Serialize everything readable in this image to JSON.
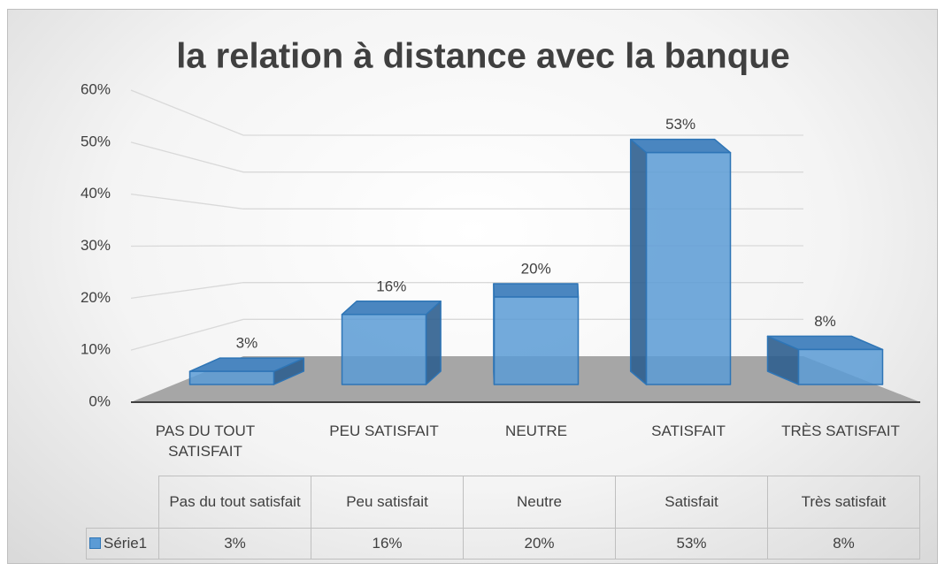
{
  "chart_data": {
    "type": "bar3d",
    "title": "la relation à distance avec la banque",
    "categories": [
      "PAS DU TOUT SATISFAIT",
      "PEU SATISFAIT",
      "NEUTRE",
      "SATISFAIT",
      "TRÈS SATISFAIT"
    ],
    "table_categories": [
      "Pas du tout satisfait",
      "Peu satisfait",
      "Neutre",
      "Satisfait",
      "Très satisfait"
    ],
    "series": [
      {
        "name": "Série1",
        "color": "#5b9bd5",
        "values": [
          3,
          16,
          20,
          53,
          8
        ],
        "value_labels": [
          "3%",
          "16%",
          "20%",
          "53%",
          "8%"
        ]
      }
    ],
    "ylim": [
      0,
      60
    ],
    "yticks": [
      {
        "value": 0,
        "label": "0%"
      },
      {
        "value": 10,
        "label": "10%"
      },
      {
        "value": 20,
        "label": "20%"
      },
      {
        "value": 30,
        "label": "30%"
      },
      {
        "value": 40,
        "label": "40%"
      },
      {
        "value": 50,
        "label": "50%"
      },
      {
        "value": 60,
        "label": "60%"
      }
    ],
    "grid": true
  }
}
